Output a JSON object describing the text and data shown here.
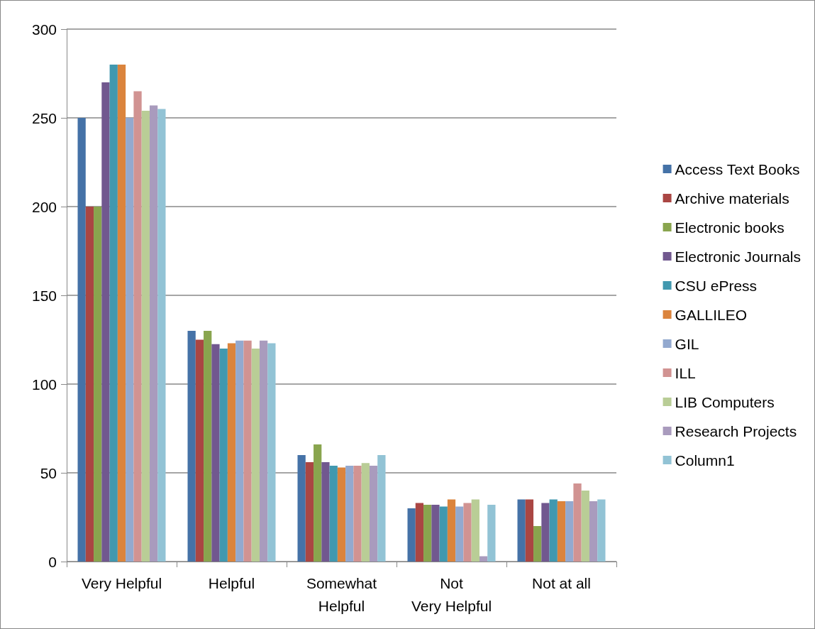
{
  "chart_data": {
    "type": "bar",
    "categories": [
      "Very Helpful",
      "Helpful",
      "Somewhat Helpful",
      "Not Very Helpful",
      "Not at all"
    ],
    "series": [
      {
        "name": "Access Text Books",
        "color": "#4572a7",
        "values": [
          250,
          130,
          60,
          30,
          35
        ]
      },
      {
        "name": "Archive materials",
        "color": "#aa4643",
        "values": [
          200,
          125,
          56,
          33,
          35
        ]
      },
      {
        "name": "Electronic books",
        "color": "#89a54e",
        "values": [
          200,
          130,
          66,
          32,
          20
        ]
      },
      {
        "name": "Electronic Journals",
        "color": "#71588f",
        "values": [
          270,
          122.5,
          56,
          32,
          33
        ]
      },
      {
        "name": "CSU ePress",
        "color": "#4198af",
        "values": [
          280,
          120,
          54,
          31,
          35
        ]
      },
      {
        "name": "GALLILEO",
        "color": "#db843d",
        "values": [
          280,
          123,
          53,
          35,
          34
        ]
      },
      {
        "name": "GIL",
        "color": "#93a9cf",
        "values": [
          250,
          124.5,
          54,
          31,
          34
        ]
      },
      {
        "name": "ILL",
        "color": "#d19392",
        "values": [
          265,
          124.5,
          54,
          33,
          44
        ]
      },
      {
        "name": "LIB Computers",
        "color": "#b9cd96",
        "values": [
          254,
          120,
          55.5,
          35,
          40
        ]
      },
      {
        "name": "Research Projects",
        "color": "#a99bbd",
        "values": [
          257,
          124.5,
          54,
          3,
          34
        ]
      },
      {
        "name": "Column1",
        "color": "#92c3d5",
        "values": [
          255,
          123,
          60,
          32,
          35
        ]
      }
    ],
    "ylim": [
      0,
      300
    ],
    "yticks": [
      0,
      50,
      100,
      150,
      200,
      250,
      300
    ],
    "grid": "y",
    "legend": "right"
  }
}
